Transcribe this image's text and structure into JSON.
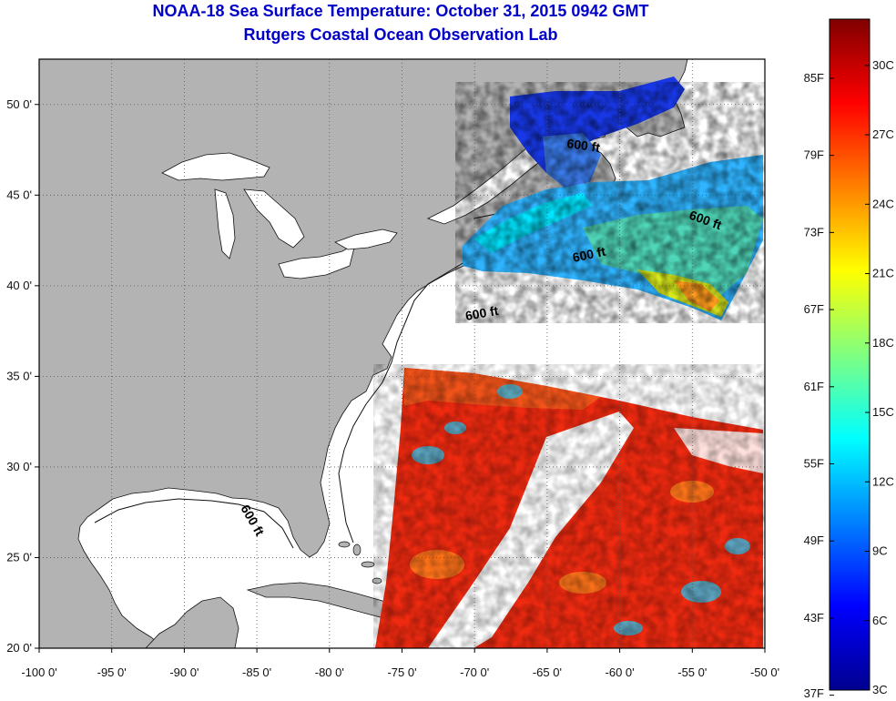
{
  "header": {
    "title": "NOAA-18 Sea Surface Temperature:  October 31, 2015 0942 GMT",
    "subtitle": "Rutgers Coastal Ocean Observation Lab"
  },
  "map": {
    "lon_range": [
      -100,
      -50
    ],
    "lat_range": [
      20,
      52.5
    ],
    "lon_ticks": [
      {
        "v": -100,
        "label": "-100 0'"
      },
      {
        "v": -95,
        "label": "-95 0'"
      },
      {
        "v": -90,
        "label": "-90 0'"
      },
      {
        "v": -85,
        "label": "-85 0'"
      },
      {
        "v": -80,
        "label": "-80 0'"
      },
      {
        "v": -75,
        "label": "-75 0'"
      },
      {
        "v": -70,
        "label": "-70 0'"
      },
      {
        "v": -65,
        "label": "-65 0'"
      },
      {
        "v": -60,
        "label": "-60 0'"
      },
      {
        "v": -55,
        "label": "-55 0'"
      },
      {
        "v": -50,
        "label": "-50 0'"
      }
    ],
    "lat_ticks": [
      {
        "v": 20,
        "label": "20 0'"
      },
      {
        "v": 25,
        "label": "25 0'"
      },
      {
        "v": 30,
        "label": "30 0'"
      },
      {
        "v": 35,
        "label": "35 0'"
      },
      {
        "v": 40,
        "label": "40 0'"
      },
      {
        "v": 45,
        "label": "45 0'"
      },
      {
        "v": 50,
        "label": "50 0'"
      }
    ],
    "contour_label": "600 ft",
    "colors": {
      "land": "#b3b3b3",
      "ocean": "#ffffff",
      "grid": "#444444"
    }
  },
  "colorbar": {
    "range_c": [
      3,
      32
    ],
    "celsius_ticks": [
      "3C",
      "6C",
      "9C",
      "12C",
      "15C",
      "18C",
      "21C",
      "24C",
      "27C",
      "30C"
    ],
    "fahrenheit_ticks": [
      "37F",
      "43F",
      "49F",
      "55F",
      "61F",
      "67F",
      "73F",
      "79F",
      "85F"
    ],
    "colormap": [
      "#00008f",
      "#0000ff",
      "#0080ff",
      "#00ffff",
      "#80ff80",
      "#ffff00",
      "#ff8000",
      "#ff0000",
      "#800000"
    ]
  }
}
